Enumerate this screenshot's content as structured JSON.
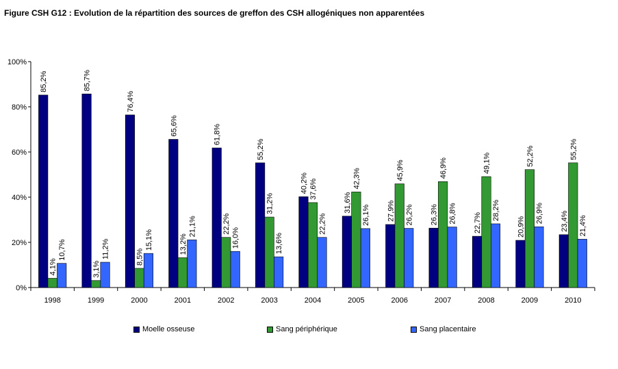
{
  "title": "Figure CSH G12 : Evolution de la répartition des sources de greffon des CSH allogéniques non apparentées",
  "chart_data": {
    "type": "bar",
    "categories": [
      "1998",
      "1999",
      "2000",
      "2001",
      "2002",
      "2003",
      "2004",
      "2005",
      "2006",
      "2007",
      "2008",
      "2009",
      "2010"
    ],
    "series": [
      {
        "name": "Moelle osseuse",
        "color": "#000080",
        "values": [
          85.2,
          85.7,
          76.4,
          65.6,
          61.8,
          55.2,
          40.2,
          31.6,
          27.9,
          26.3,
          22.7,
          20.9,
          23.4
        ],
        "labels": [
          "85,2%",
          "85,7%",
          "76,4%",
          "65,6%",
          "61,8%",
          "55,2%",
          "40,2%",
          "31,6%",
          "27,9%",
          "26,3%",
          "22,7%",
          "20,9%",
          "23,4%"
        ]
      },
      {
        "name": "Sang périphérique",
        "color": "#339933",
        "values": [
          4.1,
          3.1,
          8.5,
          13.2,
          22.2,
          31.2,
          37.6,
          42.3,
          45.9,
          46.9,
          49.1,
          52.2,
          55.2
        ],
        "labels": [
          "4,1%",
          "3,1%",
          "8,5%",
          "13,2%",
          "22,2%",
          "31,2%",
          "37,6%",
          "42,3%",
          "45,9%",
          "46,9%",
          "49,1%",
          "52,2%",
          "55,2%"
        ]
      },
      {
        "name": "Sang placentaire",
        "color": "#3366ff",
        "values": [
          10.7,
          11.2,
          15.1,
          21.1,
          16.0,
          13.6,
          22.2,
          26.1,
          26.2,
          26.8,
          28.2,
          26.9,
          21.4
        ],
        "labels": [
          "10,7%",
          "11,2%",
          "15,1%",
          "21,1%",
          "16,0%",
          "13,6%",
          "22,2%",
          "26,1%",
          "26,2%",
          "26,8%",
          "28,2%",
          "26,9%",
          "21,4%"
        ]
      }
    ],
    "yticks": [
      "0%",
      "20%",
      "40%",
      "60%",
      "80%",
      "100%"
    ],
    "ylim": [
      0,
      100
    ],
    "xlabel": "",
    "ylabel": "",
    "grid": false,
    "legend_position": "bottom"
  }
}
